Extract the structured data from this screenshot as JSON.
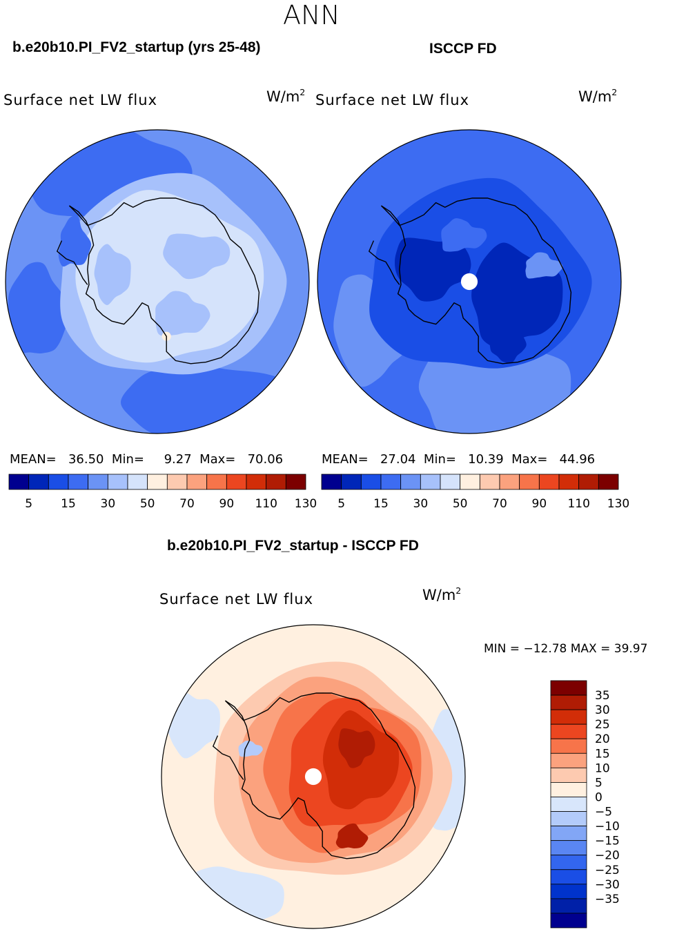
{
  "chart_data": {
    "type": "contour-map",
    "title": "ANN",
    "colors": {
      "abs_palette": [
        "#00008f",
        "#0026b8",
        "#1a4ee6",
        "#3d6cf2",
        "#6b93f5",
        "#a7c1fb",
        "#d5e3fb",
        "#fff0e0",
        "#fdcab0",
        "#fba27e",
        "#f7744a",
        "#ec4620",
        "#d22d08",
        "#b01c04",
        "#7c0000"
      ],
      "diff_palette": [
        "#00008f",
        "#0020a8",
        "#0033cc",
        "#1a4ee6",
        "#3366ee",
        "#5a86f2",
        "#82a6f6",
        "#b3cbfa",
        "#d8e6fb",
        "#fff0e0",
        "#fdcab0",
        "#fba27e",
        "#f7744a",
        "#ec4620",
        "#d22d08",
        "#b01c04",
        "#7c0000"
      ]
    },
    "panels": [
      {
        "case": "b.e20b10.PI_FV2_startup (yrs 25-48)",
        "variable": "Surface net LW flux",
        "units": "W/m",
        "units_sup": "2",
        "stats": {
          "mean_label": "MEAN=",
          "mean": "36.50",
          "min_label": "Min=",
          "min": "9.27",
          "max_label": "Max=",
          "max": "70.06"
        },
        "colorbar_ticks": [
          "5",
          "15",
          "30",
          "50",
          "70",
          "90",
          "110",
          "130"
        ],
        "pole_hole": false
      },
      {
        "case": "ISCCP FD",
        "variable": "Surface net LW flux",
        "units": "W/m",
        "units_sup": "2",
        "stats": {
          "mean_label": "MEAN=",
          "mean": "27.04",
          "min_label": "Min=",
          "min": "10.39",
          "max_label": "Max=",
          "max": "44.96"
        },
        "colorbar_ticks": [
          "5",
          "15",
          "30",
          "50",
          "70",
          "90",
          "110",
          "130"
        ],
        "pole_hole": true
      }
    ],
    "difference": {
      "title": "b.e20b10.PI_FV2_startup - ISCCP FD",
      "variable": "Surface net LW flux",
      "units": "W/m",
      "units_sup": "2",
      "minmax": "MIN = −12.78 MAX =  39.97",
      "colorbar_ticks": [
        "35",
        "30",
        "25",
        "20",
        "15",
        "10",
        "5",
        "0",
        "−5",
        "−10",
        "−15",
        "−20",
        "−25",
        "−30",
        "−35"
      ],
      "pole_hole": true
    }
  }
}
